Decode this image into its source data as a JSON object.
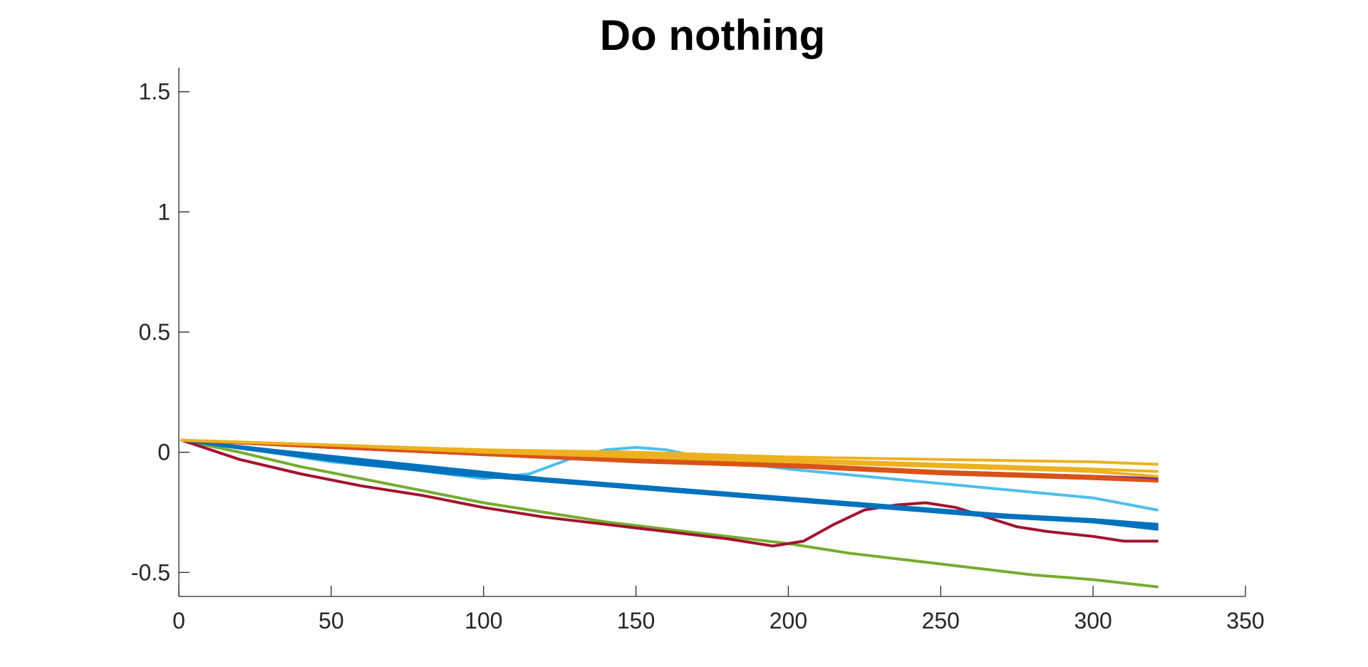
{
  "chart_data": {
    "type": "line",
    "title": "Do nothing",
    "xlabel": "",
    "ylabel": "",
    "xlim": [
      0,
      350
    ],
    "ylim": [
      -0.6,
      1.6
    ],
    "xticks": [
      0,
      50,
      100,
      150,
      200,
      250,
      300,
      350
    ],
    "yticks": [
      -0.5,
      0,
      0.5,
      1,
      1.5
    ],
    "xtick_labels": [
      "0",
      "50",
      "100",
      "150",
      "200",
      "250",
      "300",
      "350"
    ],
    "ytick_labels": [
      "-0.5",
      "0",
      "0.5",
      "1",
      "1.5"
    ],
    "grid": false,
    "series": [
      {
        "color": "#77AC30",
        "points": [
          [
            1,
            0.05
          ],
          [
            20,
            0.0
          ],
          [
            40,
            -0.06
          ],
          [
            60,
            -0.11
          ],
          [
            80,
            -0.16
          ],
          [
            100,
            -0.21
          ],
          [
            120,
            -0.25
          ],
          [
            140,
            -0.29
          ],
          [
            160,
            -0.32
          ],
          [
            180,
            -0.35
          ],
          [
            200,
            -0.38
          ],
          [
            220,
            -0.42
          ],
          [
            240,
            -0.45
          ],
          [
            260,
            -0.48
          ],
          [
            280,
            -0.51
          ],
          [
            300,
            -0.53
          ],
          [
            321,
            -0.56
          ]
        ]
      },
      {
        "color": "#A2142F",
        "points": [
          [
            1,
            0.05
          ],
          [
            20,
            -0.03
          ],
          [
            40,
            -0.09
          ],
          [
            60,
            -0.14
          ],
          [
            80,
            -0.18
          ],
          [
            100,
            -0.23
          ],
          [
            120,
            -0.27
          ],
          [
            140,
            -0.3
          ],
          [
            160,
            -0.33
          ],
          [
            180,
            -0.36
          ],
          [
            195,
            -0.39
          ],
          [
            205,
            -0.37
          ],
          [
            215,
            -0.3
          ],
          [
            225,
            -0.24
          ],
          [
            235,
            -0.22
          ],
          [
            245,
            -0.21
          ],
          [
            255,
            -0.23
          ],
          [
            265,
            -0.27
          ],
          [
            275,
            -0.31
          ],
          [
            285,
            -0.33
          ],
          [
            300,
            -0.35
          ],
          [
            310,
            -0.37
          ],
          [
            321,
            -0.37
          ]
        ]
      },
      {
        "color": "#4DBEEE",
        "points": [
          [
            1,
            0.05
          ],
          [
            25,
            0.01
          ],
          [
            50,
            -0.04
          ],
          [
            75,
            -0.07
          ],
          [
            100,
            -0.11
          ],
          [
            115,
            -0.09
          ],
          [
            130,
            -0.02
          ],
          [
            140,
            0.01
          ],
          [
            150,
            0.02
          ],
          [
            160,
            0.01
          ],
          [
            175,
            -0.03
          ],
          [
            200,
            -0.07
          ],
          [
            225,
            -0.1
          ],
          [
            250,
            -0.13
          ],
          [
            275,
            -0.16
          ],
          [
            300,
            -0.19
          ],
          [
            321,
            -0.24
          ]
        ]
      },
      {
        "color": "#0072BD",
        "points": [
          [
            1,
            0.05
          ],
          [
            30,
            0.0
          ],
          [
            60,
            -0.04
          ],
          [
            90,
            -0.08
          ],
          [
            120,
            -0.11
          ],
          [
            150,
            -0.14
          ],
          [
            180,
            -0.17
          ],
          [
            210,
            -0.2
          ],
          [
            240,
            -0.23
          ],
          [
            270,
            -0.26
          ],
          [
            300,
            -0.28
          ],
          [
            321,
            -0.3
          ]
        ]
      },
      {
        "color": "#0072BD",
        "points": [
          [
            1,
            0.05
          ],
          [
            30,
            0.01
          ],
          [
            60,
            -0.03
          ],
          [
            90,
            -0.07
          ],
          [
            120,
            -0.11
          ],
          [
            150,
            -0.14
          ],
          [
            180,
            -0.17
          ],
          [
            210,
            -0.2
          ],
          [
            240,
            -0.23
          ],
          [
            270,
            -0.26
          ],
          [
            300,
            -0.29
          ],
          [
            321,
            -0.32
          ]
        ]
      },
      {
        "color": "#0072BD",
        "points": [
          [
            1,
            0.05
          ],
          [
            30,
            0.0
          ],
          [
            60,
            -0.05
          ],
          [
            90,
            -0.09
          ],
          [
            120,
            -0.12
          ],
          [
            150,
            -0.15
          ],
          [
            180,
            -0.18
          ],
          [
            210,
            -0.21
          ],
          [
            240,
            -0.24
          ],
          [
            270,
            -0.27
          ],
          [
            300,
            -0.29
          ],
          [
            321,
            -0.31
          ]
        ]
      },
      {
        "color": "#7E2F8E",
        "points": [
          [
            1,
            0.05
          ],
          [
            50,
            0.02
          ],
          [
            100,
            -0.01
          ],
          [
            150,
            -0.03
          ],
          [
            200,
            -0.06
          ],
          [
            250,
            -0.08
          ],
          [
            300,
            -0.1
          ],
          [
            321,
            -0.11
          ]
        ]
      },
      {
        "color": "#D95319",
        "points": [
          [
            1,
            0.05
          ],
          [
            50,
            0.02
          ],
          [
            100,
            -0.01
          ],
          [
            150,
            -0.04
          ],
          [
            200,
            -0.06
          ],
          [
            250,
            -0.09
          ],
          [
            300,
            -0.11
          ],
          [
            321,
            -0.12
          ]
        ]
      },
      {
        "color": "#D95319",
        "points": [
          [
            1,
            0.05
          ],
          [
            50,
            0.02
          ],
          [
            100,
            0.0
          ],
          [
            150,
            -0.03
          ],
          [
            200,
            -0.05
          ],
          [
            250,
            -0.08
          ],
          [
            300,
            -0.1
          ],
          [
            321,
            -0.12
          ]
        ]
      },
      {
        "color": "#EDB120",
        "points": [
          [
            1,
            0.05
          ],
          [
            50,
            0.03
          ],
          [
            100,
            0.01
          ],
          [
            150,
            0.0
          ],
          [
            200,
            -0.02
          ],
          [
            250,
            -0.03
          ],
          [
            300,
            -0.04
          ],
          [
            321,
            -0.05
          ]
        ]
      },
      {
        "color": "#EDB120",
        "points": [
          [
            1,
            0.05
          ],
          [
            50,
            0.03
          ],
          [
            100,
            0.01
          ],
          [
            150,
            -0.01
          ],
          [
            200,
            -0.03
          ],
          [
            250,
            -0.05
          ],
          [
            300,
            -0.07
          ],
          [
            321,
            -0.08
          ]
        ]
      },
      {
        "color": "#EDB120",
        "points": [
          [
            1,
            0.05
          ],
          [
            50,
            0.03
          ],
          [
            100,
            0.0
          ],
          [
            150,
            -0.02
          ],
          [
            200,
            -0.04
          ],
          [
            250,
            -0.06
          ],
          [
            300,
            -0.08
          ],
          [
            321,
            -0.1
          ]
        ]
      }
    ]
  }
}
